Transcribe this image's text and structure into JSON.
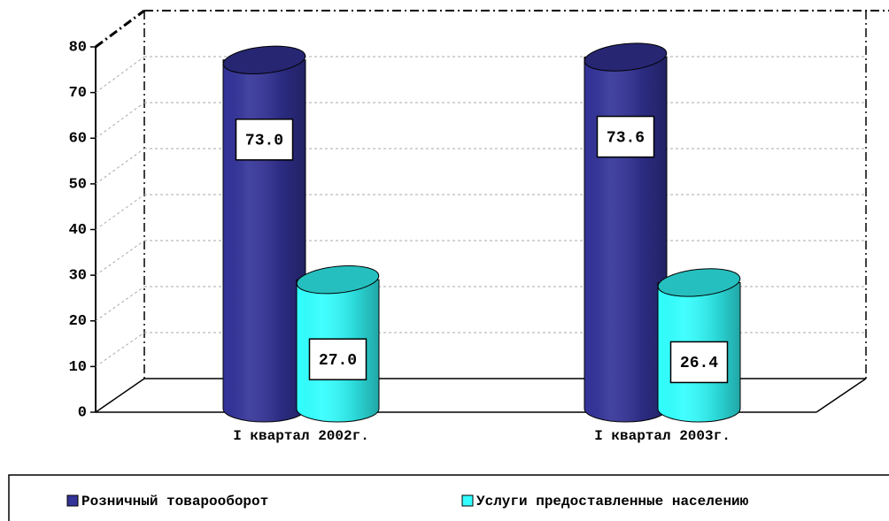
{
  "chart_data": {
    "type": "bar3d_cylinder",
    "categories": [
      "I квартал 2002г.",
      "I квартал 2003г."
    ],
    "series": [
      {
        "name": "Розничный товарооборот",
        "color": "#333399",
        "values": [
          73.0,
          73.6
        ],
        "value_labels": [
          "73.0",
          "73.6"
        ]
      },
      {
        "name": "Услуги предоставленные населению",
        "color": "#33ffff",
        "values": [
          27.0,
          26.4
        ],
        "value_labels": [
          "27.0",
          "26.4"
        ]
      }
    ],
    "ylim": [
      0,
      80
    ],
    "yticks": [
      0,
      10,
      20,
      30,
      40,
      50,
      60,
      70,
      80
    ],
    "grid": true
  }
}
